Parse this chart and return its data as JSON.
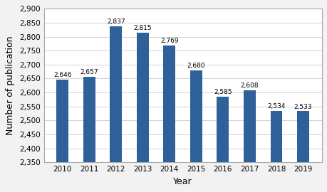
{
  "years": [
    "2010",
    "2011",
    "2012",
    "2013",
    "2014",
    "2015",
    "2016",
    "2017",
    "2018",
    "2019"
  ],
  "values": [
    2646,
    2657,
    2837,
    2815,
    2769,
    2680,
    2585,
    2608,
    2534,
    2533
  ],
  "bar_color": "#2E6099",
  "xlabel": "Year",
  "ylabel": "Number of publication",
  "ylim": [
    2350,
    2900
  ],
  "yticks": [
    2350,
    2400,
    2450,
    2500,
    2550,
    2600,
    2650,
    2700,
    2750,
    2800,
    2850,
    2900
  ],
  "label_fontsize": 9,
  "tick_fontsize": 7.5,
  "bar_label_fontsize": 6.5,
  "background_color": "#ffffff",
  "figure_background": "#f2f2f2",
  "grid_color": "#cccccc",
  "bar_width": 0.45
}
